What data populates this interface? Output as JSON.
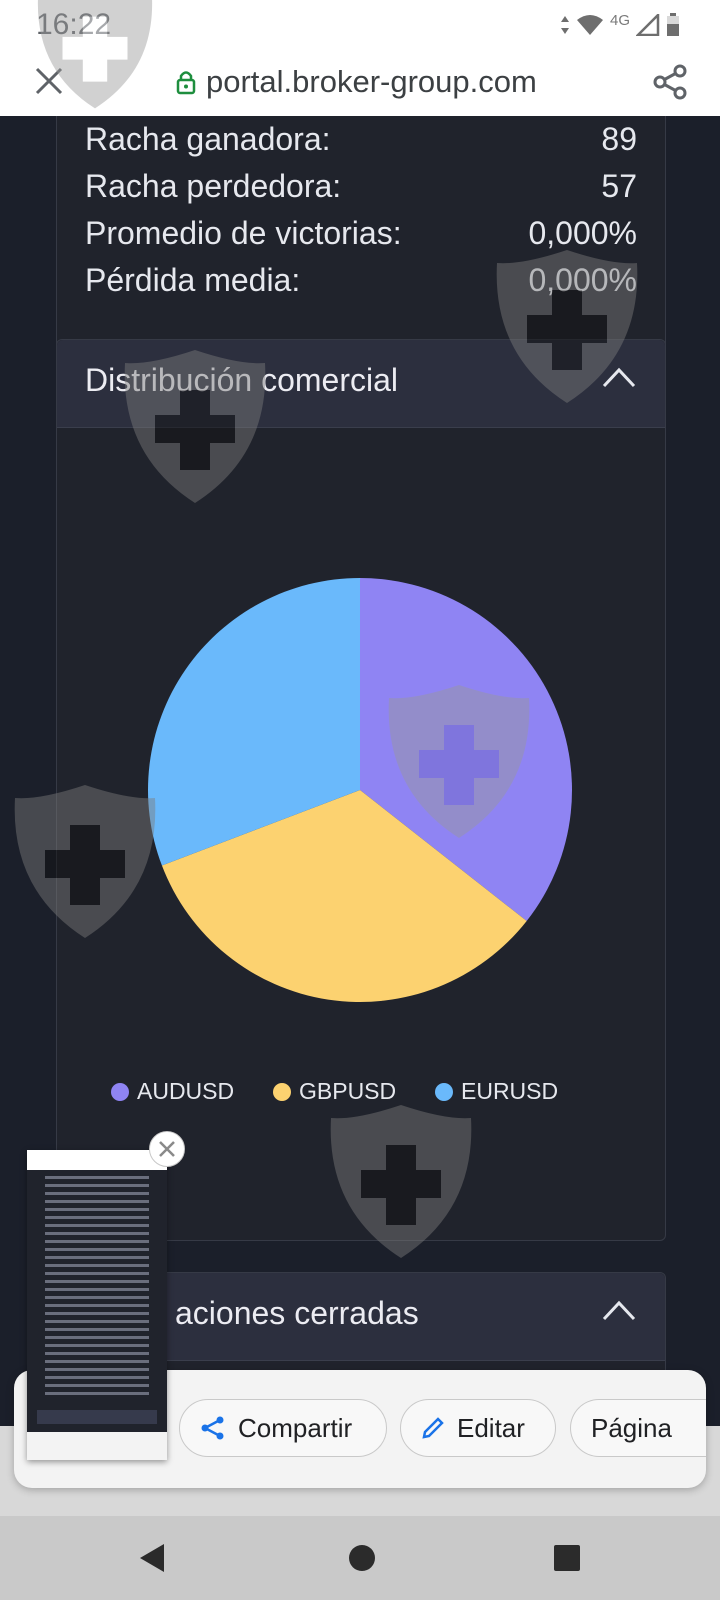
{
  "status_bar": {
    "time": "16:22",
    "network": "4G"
  },
  "browser": {
    "url": "portal.broker-group.com"
  },
  "stats": {
    "rows": [
      {
        "label": "Racha ganadora:",
        "value": "89"
      },
      {
        "label": "Racha perdedora:",
        "value": "57"
      },
      {
        "label": "Promedio de victorias:",
        "value": "0,000%"
      },
      {
        "label": "Pérdida media:",
        "value": "0,000%"
      }
    ]
  },
  "distribution": {
    "title": "Distribución comercial"
  },
  "closed": {
    "title_visible": "aciones cerradas"
  },
  "chart_data": {
    "type": "pie",
    "categories": [
      "AUDUSD",
      "GBPUSD",
      "EURUSD"
    ],
    "values": [
      35.6,
      33.6,
      30.8
    ],
    "colors": [
      "#8f84f3",
      "#fcd270",
      "#6ab9fb"
    ],
    "legend_position": "bottom"
  },
  "sheet": {
    "share_label": "Compartir",
    "edit_label": "Editar",
    "page_label": "Página"
  },
  "colors": {
    "page_bg": "#1b1f2a",
    "card_bg": "#20232c",
    "header_bg": "#2c2f3e"
  }
}
